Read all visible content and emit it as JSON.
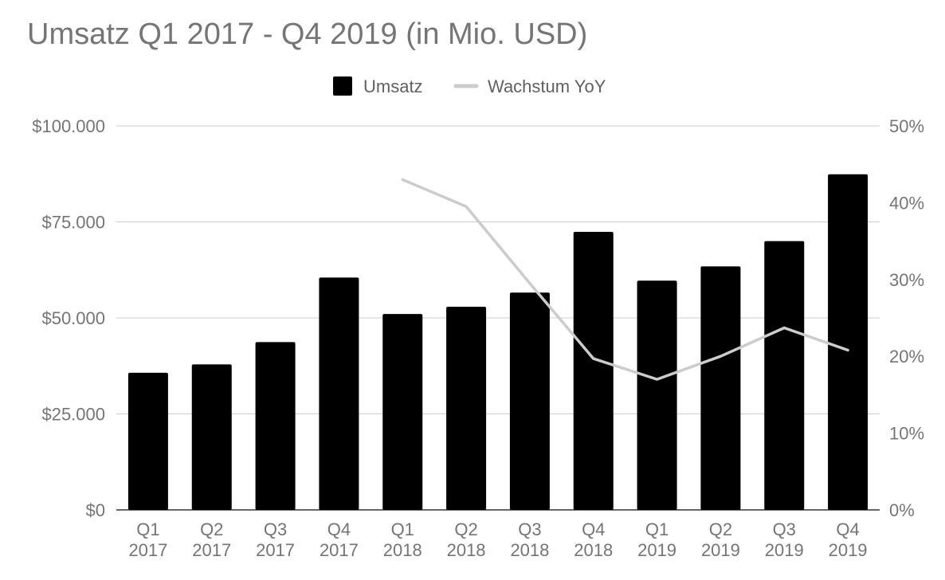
{
  "chart_data": {
    "type": "bar",
    "title": "Umsatz Q1 2017 - Q4 2019 (in Mio. USD)",
    "categories": [
      [
        "Q1",
        "2017"
      ],
      [
        "Q2",
        "2017"
      ],
      [
        "Q3",
        "2017"
      ],
      [
        "Q4",
        "2017"
      ],
      [
        "Q1",
        "2018"
      ],
      [
        "Q2",
        "2018"
      ],
      [
        "Q3",
        "2018"
      ],
      [
        "Q4",
        "2018"
      ],
      [
        "Q1",
        "2019"
      ],
      [
        "Q2",
        "2019"
      ],
      [
        "Q3",
        "2019"
      ],
      [
        "Q4",
        "2019"
      ]
    ],
    "series": [
      {
        "name": "Umsatz",
        "type": "bar",
        "axis": "left",
        "color": "#000000",
        "values": [
          35700,
          37900,
          43700,
          60500,
          51000,
          52900,
          56600,
          72400,
          59700,
          63400,
          70000,
          87400
        ]
      },
      {
        "name": "Wachstum YoY",
        "type": "line",
        "axis": "right",
        "color": "#cccccc",
        "values": [
          null,
          null,
          null,
          null,
          43,
          39.5,
          29.5,
          19.7,
          17,
          20,
          23.7,
          20.8
        ]
      }
    ],
    "y_left": {
      "ylim": [
        0,
        100000
      ],
      "ticks": [
        0,
        25000,
        50000,
        75000,
        100000
      ],
      "tick_labels": [
        "$0",
        "$25.000",
        "$50.000",
        "$75.000",
        "$100.000"
      ]
    },
    "y_right": {
      "ylim": [
        0,
        50
      ],
      "ticks": [
        0,
        10,
        20,
        30,
        40,
        50
      ],
      "tick_labels": [
        "0%",
        "10%",
        "20%",
        "30%",
        "40%",
        "50%"
      ]
    },
    "grid": true,
    "legend": "top-center"
  }
}
